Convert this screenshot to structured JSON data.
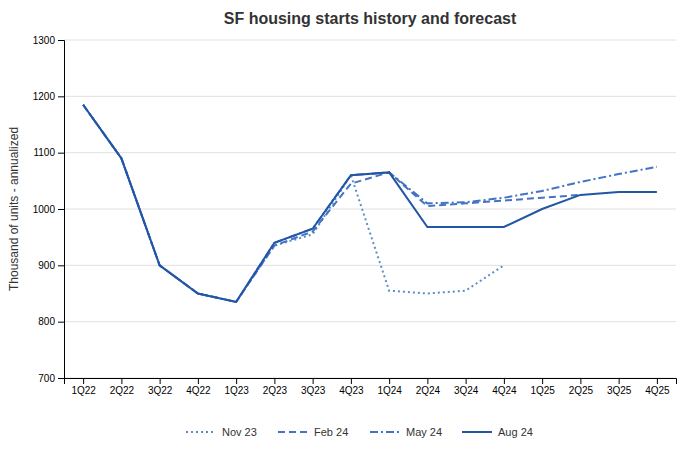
{
  "chart_data": {
    "type": "line",
    "title": "SF housing starts history and forecast",
    "ylabel": "Thousand of units - annualized",
    "categories": [
      "1Q22",
      "2Q22",
      "3Q22",
      "4Q22",
      "1Q23",
      "2Q23",
      "3Q23",
      "4Q23",
      "1Q24",
      "2Q24",
      "3Q24",
      "4Q24",
      "1Q25",
      "2Q25",
      "3Q25",
      "4Q25"
    ],
    "series": [
      {
        "name": "Nov 23",
        "color": "#5B8DC8",
        "line_style": "dotted",
        "values": [
          1185,
          1090,
          900,
          850,
          835,
          935,
          955,
          1060,
          855,
          850,
          855,
          900,
          null,
          null,
          null,
          null
        ]
      },
      {
        "name": "Feb 24",
        "color": "#4472C4",
        "line_style": "dashed",
        "values": [
          1185,
          1090,
          900,
          850,
          835,
          935,
          960,
          1045,
          1065,
          1005,
          1010,
          1015,
          1020,
          1025,
          null,
          null
        ]
      },
      {
        "name": "May 24",
        "color": "#4472C4",
        "line_style": "dashdot",
        "values": [
          1185,
          1090,
          900,
          850,
          835,
          940,
          965,
          1060,
          1065,
          1010,
          1012,
          1020,
          1032,
          1048,
          1062,
          1075
        ]
      },
      {
        "name": "Aug 24",
        "color": "#2255A4",
        "line_style": "solid",
        "values": [
          1185,
          1090,
          900,
          850,
          835,
          940,
          965,
          1060,
          1065,
          968,
          968,
          968,
          1000,
          1025,
          1030,
          1030
        ]
      }
    ],
    "ylim": [
      700,
      1300
    ],
    "yticks": [
      700,
      800,
      900,
      1000,
      1100,
      1200,
      1300
    ],
    "grid": true,
    "legend": "bottom"
  }
}
